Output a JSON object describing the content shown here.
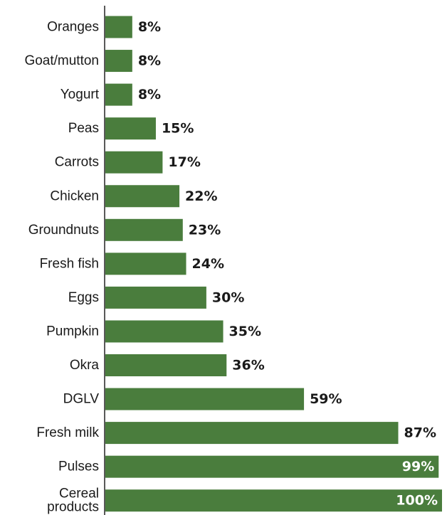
{
  "chart_data": {
    "type": "bar",
    "orientation": "horizontal",
    "categories": [
      "Oranges",
      "Goat/mutton",
      "Yogurt",
      "Peas",
      "Carrots",
      "Chicken",
      "Groundnuts",
      "Fresh fish",
      "Eggs",
      "Pumpkin",
      "Okra",
      "DGLV",
      "Fresh milk",
      "Pulses",
      "Cereal\nproducts"
    ],
    "values": [
      8,
      8,
      8,
      15,
      17,
      22,
      23,
      24,
      30,
      35,
      36,
      59,
      87,
      99,
      100
    ],
    "value_labels": [
      "8%",
      "8%",
      "8%",
      "15%",
      "17%",
      "22%",
      "23%",
      "24%",
      "30%",
      "35%",
      "36%",
      "59%",
      "87%",
      "99%",
      "100%"
    ],
    "unit": "%",
    "xlim": [
      0,
      100
    ],
    "grid": false,
    "legend": "none",
    "title": "",
    "xlabel": "",
    "ylabel": "",
    "colors": {
      "bar": "#4a7d3d",
      "axis": "#222222",
      "label_outside": "#1a1a1a",
      "label_inside": "#ffffff"
    }
  }
}
